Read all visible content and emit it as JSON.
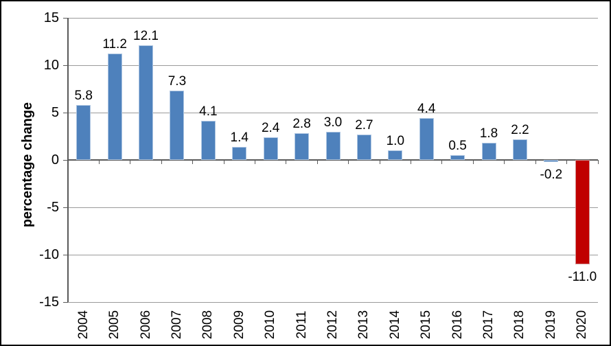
{
  "chart_data": {
    "type": "bar",
    "title": "",
    "xlabel": "",
    "ylabel": "percentage change",
    "categories": [
      "2004",
      "2005",
      "2006",
      "2007",
      "2008",
      "2009",
      "2010",
      "2011",
      "2012",
      "2013",
      "2014",
      "2015",
      "2016",
      "2017",
      "2018",
      "2019",
      "2020"
    ],
    "values": [
      5.8,
      11.2,
      12.1,
      7.3,
      4.1,
      1.4,
      2.4,
      2.8,
      3.0,
      2.7,
      1.0,
      4.4,
      0.5,
      1.8,
      2.2,
      -0.2,
      -11.0
    ],
    "bar_labels": [
      "5.8",
      "11.2",
      "12.1",
      "7.3",
      "4.1",
      "1.4",
      "2.4",
      "2.8",
      "3.0",
      "2.7",
      "1.0",
      "4.4",
      "0.5",
      "1.8",
      "2.2",
      "-0.2",
      "-11.0"
    ],
    "bar_colors": [
      "#4E81BC",
      "#4E81BC",
      "#4E81BC",
      "#4E81BC",
      "#4E81BC",
      "#4E81BC",
      "#4E81BC",
      "#4E81BC",
      "#4E81BC",
      "#4E81BC",
      "#4E81BC",
      "#4E81BC",
      "#4E81BC",
      "#4E81BC",
      "#4E81BC",
      "#4E81BC",
      "#C00000"
    ],
    "bar_border_colors": [
      "#AEC6E2",
      "#AEC6E2",
      "#AEC6E2",
      "#AEC6E2",
      "#AEC6E2",
      "#AEC6E2",
      "#AEC6E2",
      "#AEC6E2",
      "#AEC6E2",
      "#AEC6E2",
      "#AEC6E2",
      "#AEC6E2",
      "#AEC6E2",
      "#AEC6E2",
      "#AEC6E2",
      "#AEC6E2",
      "#CF9292"
    ],
    "ylim": [
      -15,
      15
    ],
    "yticks": [
      15,
      10,
      5,
      0,
      -5,
      -10,
      -15
    ],
    "ytick_labels": [
      "15",
      "10",
      "5",
      "0",
      "-5",
      "-10",
      "-15"
    ],
    "grid": "horizontal-on",
    "legend": "none",
    "colors": {
      "gridline": "#9A9A9A",
      "axis": "#595959",
      "text": "#000000",
      "background": "#FFFFFF",
      "frame_border": "#000000"
    }
  }
}
